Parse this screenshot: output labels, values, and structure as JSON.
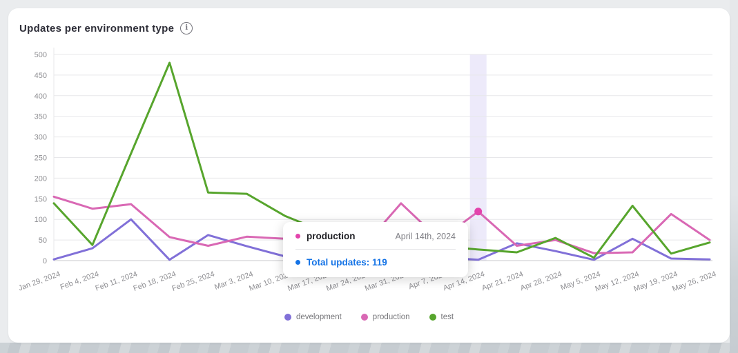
{
  "card": {
    "title": "Updates per environment type"
  },
  "chart_data": {
    "type": "line",
    "title": "Updates per environment type",
    "xlabel": "",
    "ylabel": "",
    "ylim": [
      0,
      500
    ],
    "ytick_step": 50,
    "grid": true,
    "legend_position": "bottom",
    "x": [
      "Jan 29, 2024",
      "Feb 4, 2024",
      "Feb 11, 2024",
      "Feb 18, 2024",
      "Feb 25, 2024",
      "Mar 3, 2024",
      "Mar 10, 2024",
      "Mar 17, 2024",
      "Mar 24, 2024",
      "Mar 31, 2024",
      "Apr 7, 2024",
      "Apr 14, 2024",
      "Apr 21, 2024",
      "Apr 28, 2024",
      "May 5, 2024",
      "May 12, 2024",
      "May 19, 2024",
      "May 26, 2024"
    ],
    "series": [
      {
        "name": "development",
        "color": "#8170d8",
        "values": [
          3,
          30,
          100,
          2,
          62,
          35,
          10,
          18,
          12,
          25,
          8,
          2,
          42,
          23,
          2,
          53,
          5,
          3
        ]
      },
      {
        "name": "production",
        "color": "#d968b4",
        "values": [
          155,
          126,
          137,
          57,
          36,
          58,
          53,
          45,
          32,
          139,
          50,
          119,
          36,
          50,
          18,
          20,
          113,
          50
        ]
      },
      {
        "name": "test",
        "color": "#57a52d",
        "values": [
          139,
          38,
          260,
          480,
          165,
          162,
          108,
          70,
          45,
          30,
          35,
          27,
          20,
          55,
          7,
          133,
          17,
          44
        ]
      }
    ],
    "highlight": {
      "x_index": 11,
      "series": "production",
      "band_color": "#edeafa",
      "dot_color": "#e343ac"
    }
  },
  "tooltip": {
    "series_name": "production",
    "series_color": "#e343ac",
    "date": "April 14th, 2024",
    "total_label": "Total updates: 119",
    "total_color": "#1473e6"
  }
}
